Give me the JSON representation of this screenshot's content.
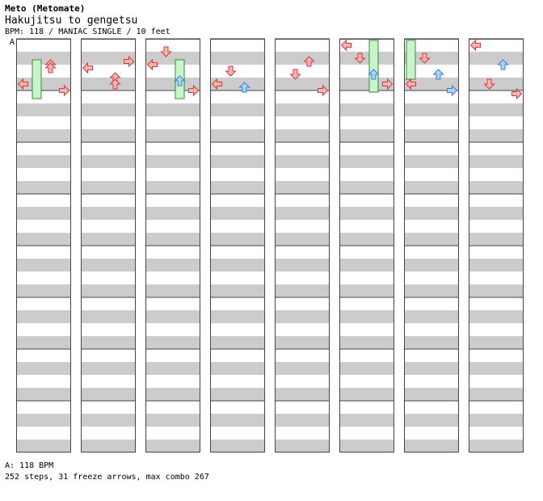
{
  "song": {
    "artist": "Meto (Metomate)",
    "title": "Hakujitsu to gengetsu",
    "info": "BPM: 118 / MANIAC SINGLE / 10 feet"
  },
  "section_marker": "A",
  "footer": {
    "bpm_line": "A: 118 BPM",
    "stats_line": "252 steps, 31 freeze arrows, max combo 267"
  },
  "colors": {
    "red_fill": "#ffb3b3",
    "red_stroke": "#d23a3a",
    "blue_fill": "#a9d4ff",
    "blue_stroke": "#3a7fd0",
    "pink_fill": "#f7c3f7",
    "pink_stroke": "#c060c0",
    "freeze_fill": "#c8f5c8",
    "freeze_stroke": "#3a8a3a",
    "stripe_gray": "#cccccc",
    "lane_border": "#444444"
  },
  "chart_data": {
    "type": "step-chart",
    "columns": 8,
    "measures_per_column": 8,
    "lanes": [
      "left",
      "down",
      "up",
      "right"
    ],
    "measure_length": 16,
    "arrows": [
      [
        0,
        6,
        2,
        "red"
      ],
      [
        0,
        7,
        2,
        "red"
      ],
      [
        0,
        12,
        0,
        "red"
      ],
      [
        0,
        14,
        3,
        "red"
      ],
      [
        1,
        5,
        3,
        "red"
      ],
      [
        1,
        7,
        0,
        "red"
      ],
      [
        1,
        10,
        2,
        "red"
      ],
      [
        1,
        12,
        2,
        "red"
      ],
      [
        2,
        2,
        1,
        "red"
      ],
      [
        2,
        6,
        0,
        "red"
      ],
      [
        2,
        11,
        2,
        "blue"
      ],
      [
        2,
        14,
        3,
        "red"
      ],
      [
        3,
        8,
        1,
        "red"
      ],
      [
        3,
        12,
        0,
        "red"
      ],
      [
        3,
        13,
        2,
        "blue"
      ],
      [
        4,
        5,
        2,
        "red"
      ],
      [
        4,
        9,
        1,
        "red"
      ],
      [
        4,
        14,
        3,
        "red"
      ],
      [
        5,
        0,
        0,
        "red"
      ],
      [
        5,
        4,
        1,
        "red"
      ],
      [
        5,
        9,
        2,
        "blue"
      ],
      [
        5,
        12,
        3,
        "red"
      ],
      [
        6,
        4,
        1,
        "red"
      ],
      [
        6,
        9,
        2,
        "blue"
      ],
      [
        6,
        12,
        0,
        "red"
      ],
      [
        6,
        14,
        3,
        "blue"
      ],
      [
        7,
        0,
        0,
        "red"
      ],
      [
        7,
        6,
        2,
        "blue"
      ],
      [
        7,
        12,
        1,
        "red"
      ],
      [
        7,
        15,
        3,
        "red"
      ]
    ],
    "freezes": [
      [
        0,
        6,
        1,
        3
      ],
      [
        2,
        6,
        2,
        3
      ],
      [
        5,
        0,
        2,
        4
      ],
      [
        6,
        0,
        0,
        3
      ]
    ]
  }
}
